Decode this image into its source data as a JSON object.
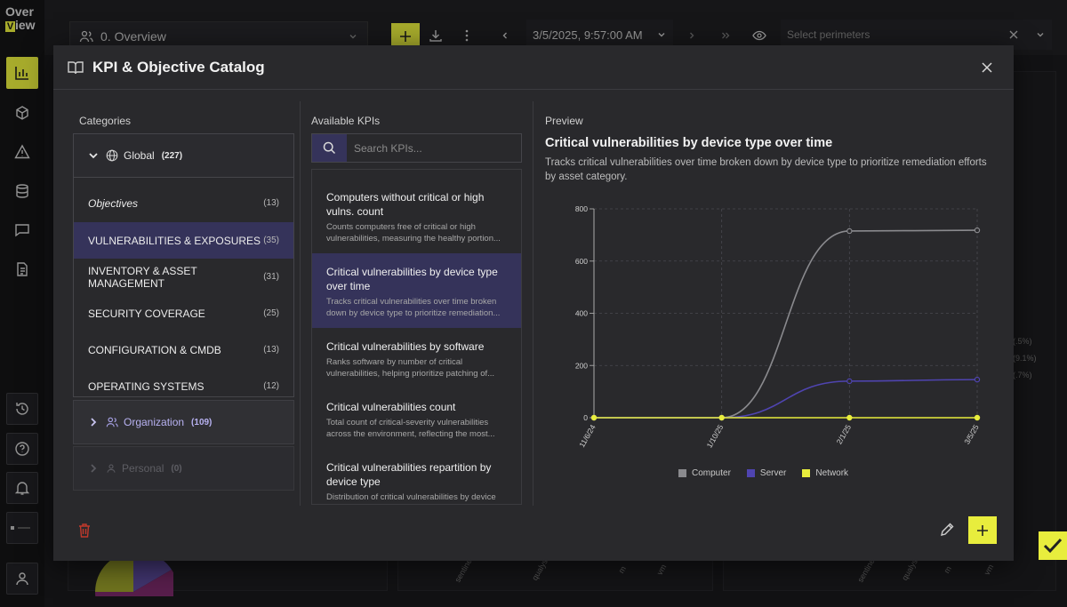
{
  "app": {
    "logo_line1": "Over",
    "logo_v": "V",
    "logo_line2": "iew",
    "dashboard_label": "0. Overview",
    "datetime": "3/5/2025, 9:57:00 AM",
    "perimeters_placeholder": "Select perimeters",
    "bg_labels": [
      "sentinel",
      "qualys",
      "m",
      "vm",
      "sentinel",
      "qualys",
      "m",
      "vm"
    ],
    "bg_percentages": [
      "(.5%)",
      "(9.1%)",
      "(.7%)"
    ]
  },
  "modal": {
    "title": "KPI & Objective Catalog",
    "categories_title": "Categories",
    "kpis_title": "Available KPIs",
    "preview_title": "Preview",
    "search_placeholder": "Search KPIs..."
  },
  "categories": {
    "global": {
      "name": "Global",
      "count": "(227)"
    },
    "items": [
      {
        "label": "Objectives",
        "count": "(13)"
      },
      {
        "label": "VULNERABILITIES & EXPOSURES",
        "count": "(35)"
      },
      {
        "label": "INVENTORY & ASSET MANAGEMENT",
        "count": "(31)"
      },
      {
        "label": "SECURITY COVERAGE",
        "count": "(25)"
      },
      {
        "label": "CONFIGURATION & CMDB",
        "count": "(13)"
      },
      {
        "label": "OPERATING SYSTEMS",
        "count": "(12)"
      }
    ],
    "organization": {
      "name": "Organization",
      "count": "(109)"
    },
    "personal": {
      "name": "Personal",
      "count": "(0)"
    }
  },
  "kpis": [
    {
      "title": "Computers without critical or high vulns. count",
      "desc": "Counts computers free of critical or high vulnerabilities, measuring the healthy portion..."
    },
    {
      "title": "Critical vulnerabilities by device type over time",
      "desc": "Tracks critical vulnerabilities over time broken down by device type to prioritize remediation..."
    },
    {
      "title": "Critical vulnerabilities by software",
      "desc": "Ranks software by number of critical vulnerabilities, helping prioritize patching of..."
    },
    {
      "title": "Critical vulnerabilities count",
      "desc": "Total count of critical-severity vulnerabilities across the environment, reflecting the most..."
    },
    {
      "title": "Critical vulnerabilities repartition by device type",
      "desc": "Distribution of critical vulnerabilities by device type, helping identify which asset categories..."
    }
  ],
  "preview": {
    "title": "Critical vulnerabilities by device type over time",
    "description": "Tracks critical vulnerabilities over time broken down by device type to prioritize remediation efforts by asset category."
  },
  "colors": {
    "accent": "#e8ed3d",
    "selected": "#35335a",
    "computer": "#8a8a8e",
    "server": "#4f44b0",
    "network": "#e8ed3d"
  },
  "icons": [
    "logo",
    "bar-chart-icon",
    "cube-icon",
    "warning-icon",
    "database-icon",
    "chat-icon",
    "document-icon",
    "history-icon",
    "help-icon",
    "bell-icon",
    "user-icon",
    "users-icon",
    "chevron-down-icon",
    "plus-icon",
    "download-icon",
    "more-vertical-icon",
    "chevron-left-icon",
    "chevron-right-icon",
    "double-chevron-right-icon",
    "eye-icon",
    "close-icon",
    "book-open-icon",
    "globe-icon",
    "search-icon",
    "trash-icon",
    "pencil-icon",
    "check-icon"
  ],
  "chart_data": {
    "type": "line",
    "x": [
      "11/6/24",
      "1/10/25",
      "2/1/25",
      "3/5/25"
    ],
    "ylim": [
      0,
      800
    ],
    "yticks": [
      0,
      200,
      400,
      600,
      800
    ],
    "grid": true,
    "legend_position": "bottom",
    "series": [
      {
        "name": "Computer",
        "values": [
          0,
          0,
          715,
          718
        ]
      },
      {
        "name": "Server",
        "values": [
          0,
          0,
          140,
          146
        ]
      },
      {
        "name": "Network",
        "values": [
          0,
          0,
          0,
          0
        ]
      }
    ]
  }
}
